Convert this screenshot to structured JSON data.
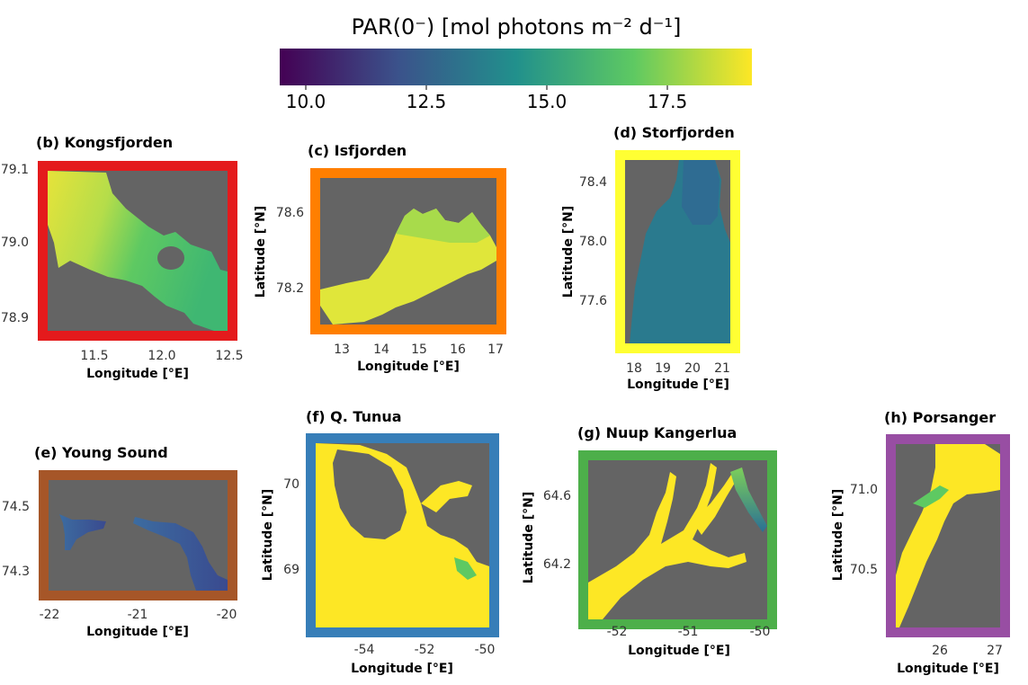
{
  "colorbar": {
    "title": "PAR(0⁻) [mol photons m⁻² d⁻¹]",
    "ticks": [
      "10.0",
      "12.5",
      "15.0",
      "17.5"
    ],
    "colors": [
      "#440154",
      "#3b528b",
      "#21908c",
      "#5ec962",
      "#fde725"
    ]
  },
  "panels": [
    {
      "id": "b",
      "title": "(b) Kongsfjorden",
      "border": "#e41a1c",
      "xlabel": "Longitude [°E]",
      "ylabel": "",
      "xticks": [
        "11.5",
        "12.0",
        "12.5"
      ],
      "yticks": [
        "79.1",
        "79.0",
        "78.9"
      ]
    },
    {
      "id": "c",
      "title": "(c) Isfjorden",
      "border": "#ff7f00",
      "xlabel": "Longitude [°E]",
      "ylabel": "Latitude [°N]",
      "xticks": [
        "13",
        "14",
        "15",
        "16",
        "17"
      ],
      "yticks": [
        "78.6",
        "78.2"
      ]
    },
    {
      "id": "d",
      "title": "(d) Storfjorden",
      "border": "#ffff33",
      "xlabel": "Longitude [°E]",
      "ylabel": "Latitude [°N]",
      "xticks": [
        "18",
        "19",
        "20",
        "21"
      ],
      "yticks": [
        "78.4",
        "78.0",
        "77.6"
      ]
    },
    {
      "id": "e",
      "title": "(e) Young Sound",
      "border": "#a65628",
      "xlabel": "Longitude [°E]",
      "ylabel": "",
      "xticks": [
        "-22",
        "-21",
        "-20"
      ],
      "yticks": [
        "74.5",
        "74.3"
      ]
    },
    {
      "id": "f",
      "title": "(f) Q. Tunua",
      "border": "#377eb8",
      "xlabel": "Longitude [°E]",
      "ylabel": "Latitude [°N]",
      "xticks": [
        "-54",
        "-52",
        "-50"
      ],
      "yticks": [
        "70",
        "69"
      ]
    },
    {
      "id": "g",
      "title": "(g) Nuup Kangerlua",
      "border": "#4daf4a",
      "xlabel": "Longitude [°E]",
      "ylabel": "Latitude [°N]",
      "xticks": [
        "-52",
        "-51",
        "-50"
      ],
      "yticks": [
        "64.6",
        "64.2"
      ]
    },
    {
      "id": "h",
      "title": "(h) Porsanger",
      "border": "#984ea3",
      "xlabel": "Longitude [°E]",
      "ylabel": "Latitude [°N]",
      "xticks": [
        "26",
        "27"
      ],
      "yticks": [
        "71.0",
        "70.5"
      ]
    }
  ]
}
